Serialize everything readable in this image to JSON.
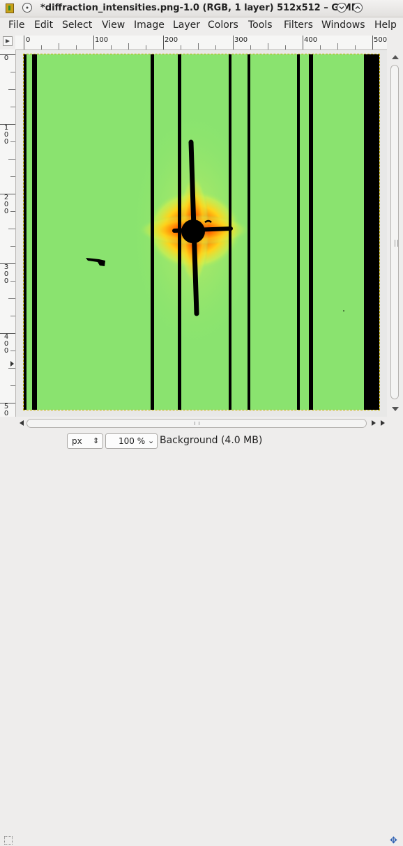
{
  "window": {
    "title": "*diffraction_intensities.png-1.0 (RGB, 1 layer) 512x512 – GIMP"
  },
  "menu": [
    "File",
    "Edit",
    "Select",
    "View",
    "Image",
    "Layer",
    "Colors",
    "Tools",
    "Filters",
    "Windows",
    "Help"
  ],
  "ruler": {
    "horizontal": [
      "0",
      "100",
      "200",
      "300",
      "400",
      "500"
    ],
    "vertical": [
      "0",
      "100",
      "200",
      "300",
      "400",
      "500"
    ]
  },
  "status": {
    "unit": "px",
    "zoom": "100 %",
    "layer_info": "Background (4.0 MB)"
  },
  "colors": {
    "background_field": "#8ee86e",
    "beamstop": "#000000"
  }
}
